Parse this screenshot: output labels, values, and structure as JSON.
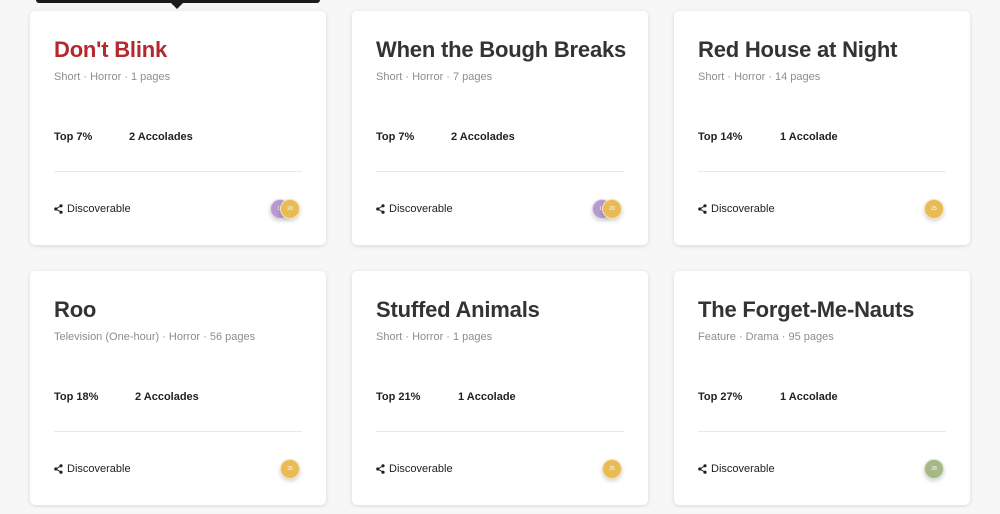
{
  "cards": [
    {
      "title": "Don't Blink",
      "meta": "Short · Horror · 1 pages",
      "rank": "Top 7%",
      "accolades": "2 Accolades",
      "visibility": "Discoverable",
      "badges": [
        {
          "label": "10",
          "color": "#b79ad0"
        },
        {
          "label": "20",
          "color": "#e9bb55"
        }
      ],
      "title_color": "#b3292f"
    },
    {
      "title": "When the Bough Breaks",
      "meta": "Short · Horror · 7 pages",
      "rank": "Top 7%",
      "accolades": "2 Accolades",
      "visibility": "Discoverable",
      "badges": [
        {
          "label": "10",
          "color": "#b79ad0"
        },
        {
          "label": "20",
          "color": "#e9bb55"
        }
      ]
    },
    {
      "title": "Red House at Night",
      "meta": "Short · Horror · 14 pages",
      "rank": "Top 14%",
      "accolades": "1 Accolade",
      "visibility": "Discoverable",
      "badges": [
        {
          "label": "25",
          "color": "#e9bb55"
        }
      ]
    },
    {
      "title": "Roo",
      "meta": "Television (One-hour) · Horror · 56 pages",
      "rank": "Top 18%",
      "accolades": "2 Accolades",
      "visibility": "Discoverable",
      "badges": [
        {
          "label": "25",
          "color": "#e9bb55"
        }
      ]
    },
    {
      "title": "Stuffed Animals",
      "meta": "Short · Horror · 1 pages",
      "rank": "Top 21%",
      "accolades": "1 Accolade",
      "visibility": "Discoverable",
      "badges": [
        {
          "label": "25",
          "color": "#e9bb55"
        }
      ]
    },
    {
      "title": "The Forget-Me-Nauts",
      "meta": "Feature · Drama · 95 pages",
      "rank": "Top 27%",
      "accolades": "1 Accolade",
      "visibility": "Discoverable",
      "badges": [
        {
          "label": "28",
          "color": "#a6b886"
        }
      ]
    }
  ],
  "icons": {
    "visibility_icon": "share-icon"
  }
}
